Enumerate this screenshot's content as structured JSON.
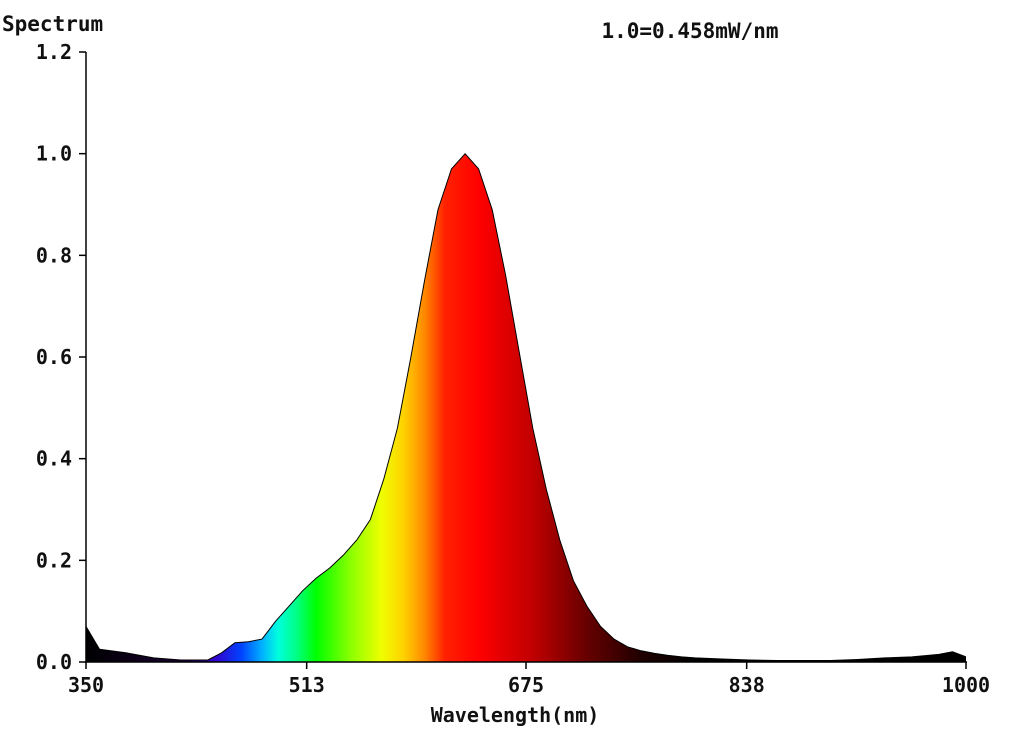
{
  "chart_data": {
    "type": "area",
    "title": "Spectrum",
    "annotation": "1.0=0.458mW/nm",
    "xlabel": "Wavelength(nm)",
    "ylabel": "",
    "xlim": [
      350,
      1000
    ],
    "ylim": [
      0,
      1.2
    ],
    "x_ticks": [
      "350",
      "513",
      "675",
      "838",
      "1000"
    ],
    "y_ticks": [
      "0.0",
      "0.2",
      "0.4",
      "0.6",
      "0.8",
      "1.0",
      "1.2"
    ],
    "fill": "wavelength-rainbow",
    "grid": false,
    "x": [
      350,
      360,
      380,
      400,
      420,
      440,
      450,
      460,
      470,
      480,
      490,
      500,
      510,
      520,
      530,
      540,
      550,
      560,
      570,
      580,
      590,
      600,
      610,
      620,
      630,
      640,
      650,
      660,
      670,
      680,
      690,
      700,
      710,
      720,
      730,
      740,
      750,
      760,
      770,
      780,
      790,
      800,
      820,
      840,
      860,
      880,
      900,
      920,
      940,
      960,
      980,
      990,
      1000
    ],
    "values": [
      0.07,
      0.025,
      0.018,
      0.008,
      0.004,
      0.004,
      0.018,
      0.038,
      0.04,
      0.045,
      0.08,
      0.11,
      0.14,
      0.165,
      0.185,
      0.21,
      0.24,
      0.28,
      0.36,
      0.46,
      0.6,
      0.75,
      0.89,
      0.97,
      1.0,
      0.97,
      0.89,
      0.76,
      0.61,
      0.46,
      0.34,
      0.24,
      0.16,
      0.11,
      0.07,
      0.045,
      0.03,
      0.022,
      0.017,
      0.013,
      0.01,
      0.008,
      0.006,
      0.004,
      0.003,
      0.003,
      0.003,
      0.005,
      0.008,
      0.01,
      0.015,
      0.02,
      0.01
    ]
  }
}
